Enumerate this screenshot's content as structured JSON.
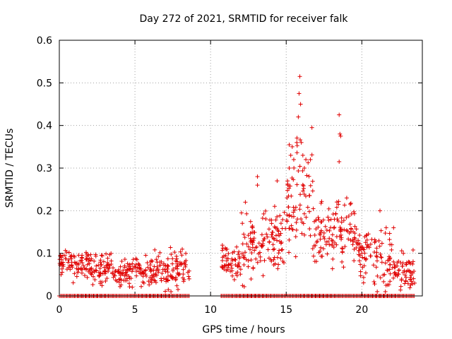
{
  "chart_data": {
    "type": "scatter",
    "title": "Day 272 of 2021, SRMTID for receiver falk",
    "xlabel": "GPS time / hours",
    "ylabel": "SRMTID / TECUs",
    "xlim": [
      0,
      24
    ],
    "ylim": [
      0,
      0.6
    ],
    "xticks": [
      "0",
      "5",
      "10",
      "15",
      "20"
    ],
    "yticks": [
      "0",
      "0.1",
      "0.2",
      "0.3",
      "0.4",
      "0.5",
      "0.6"
    ],
    "grid": true,
    "marker": "+",
    "series_color": "#e00000",
    "bands": [
      {
        "x0": 0.0,
        "x1": 0.9,
        "level": 0.08,
        "spread": 0.02
      },
      {
        "x0": 0.9,
        "x1": 2.0,
        "level": 0.075,
        "spread": 0.025
      },
      {
        "x0": 2.0,
        "x1": 3.5,
        "level": 0.065,
        "spread": 0.025
      },
      {
        "x0": 3.5,
        "x1": 5.0,
        "level": 0.055,
        "spread": 0.02
      },
      {
        "x0": 5.0,
        "x1": 6.5,
        "level": 0.06,
        "spread": 0.025
      },
      {
        "x0": 6.5,
        "x1": 8.6,
        "level": 0.06,
        "spread": 0.03
      },
      {
        "x0": 10.7,
        "x1": 12.0,
        "level": 0.08,
        "spread": 0.03
      },
      {
        "x0": 12.0,
        "x1": 13.5,
        "level": 0.12,
        "spread": 0.06
      },
      {
        "x0": 13.5,
        "x1": 15.0,
        "level": 0.14,
        "spread": 0.06
      },
      {
        "x0": 15.0,
        "x1": 16.8,
        "level": 0.22,
        "spread": 0.09
      },
      {
        "x0": 16.8,
        "x1": 18.3,
        "level": 0.15,
        "spread": 0.05
      },
      {
        "x0": 18.3,
        "x1": 19.6,
        "level": 0.16,
        "spread": 0.05
      },
      {
        "x0": 19.6,
        "x1": 20.8,
        "level": 0.11,
        "spread": 0.05
      },
      {
        "x0": 20.8,
        "x1": 22.0,
        "level": 0.08,
        "spread": 0.05
      },
      {
        "x0": 22.0,
        "x1": 23.5,
        "level": 0.06,
        "spread": 0.03
      }
    ],
    "peaks": [
      [
        15.1,
        0.26
      ],
      [
        15.2,
        0.3
      ],
      [
        15.3,
        0.33
      ],
      [
        15.4,
        0.35
      ],
      [
        15.5,
        0.32
      ],
      [
        15.7,
        0.36
      ],
      [
        15.8,
        0.42
      ],
      [
        15.85,
        0.475
      ],
      [
        15.9,
        0.515
      ],
      [
        15.95,
        0.45
      ],
      [
        16.0,
        0.36
      ],
      [
        16.1,
        0.33
      ],
      [
        16.2,
        0.3
      ],
      [
        16.3,
        0.32
      ],
      [
        16.6,
        0.32
      ],
      [
        16.7,
        0.395
      ],
      [
        13.1,
        0.28
      ],
      [
        13.1,
        0.26
      ],
      [
        12.3,
        0.22
      ],
      [
        14.4,
        0.27
      ],
      [
        18.5,
        0.425
      ],
      [
        18.55,
        0.38
      ],
      [
        18.6,
        0.375
      ],
      [
        18.5,
        0.315
      ],
      [
        19.0,
        0.23
      ],
      [
        21.2,
        0.2
      ],
      [
        22.1,
        0.16
      ]
    ],
    "zero_points": [
      [
        0.0,
        0.0
      ],
      [
        0.25,
        0.0
      ],
      [
        0.5,
        0.0
      ],
      [
        0.75,
        0.0
      ],
      [
        1.0,
        0.0
      ],
      [
        1.25,
        0.0
      ],
      [
        1.5,
        0.0
      ],
      [
        1.75,
        0.0
      ],
      [
        2.0,
        0.0
      ],
      [
        2.25,
        0.0
      ],
      [
        2.5,
        0.0
      ],
      [
        2.75,
        0.0
      ],
      [
        3.0,
        0.0
      ],
      [
        3.25,
        0.0
      ],
      [
        3.5,
        0.0
      ],
      [
        3.75,
        0.0
      ],
      [
        4.0,
        0.0
      ],
      [
        4.25,
        0.0
      ],
      [
        4.5,
        0.0
      ],
      [
        4.75,
        0.0
      ],
      [
        5.0,
        0.0
      ],
      [
        5.25,
        0.0
      ],
      [
        5.5,
        0.0
      ],
      [
        5.75,
        0.0
      ],
      [
        6.0,
        0.0
      ],
      [
        6.25,
        0.0
      ],
      [
        6.5,
        0.0
      ],
      [
        6.75,
        0.0
      ],
      [
        7.0,
        0.0
      ],
      [
        7.25,
        0.0
      ],
      [
        7.5,
        0.0
      ],
      [
        7.75,
        0.0
      ],
      [
        8.0,
        0.0
      ],
      [
        8.25,
        0.0
      ],
      [
        8.5,
        0.0
      ],
      [
        10.7,
        0.0
      ],
      [
        10.95,
        0.0
      ],
      [
        11.2,
        0.0
      ],
      [
        11.45,
        0.0
      ],
      [
        11.7,
        0.0
      ],
      [
        11.95,
        0.0
      ],
      [
        12.2,
        0.0
      ],
      [
        12.45,
        0.0
      ],
      [
        12.7,
        0.0
      ],
      [
        12.95,
        0.0
      ],
      [
        13.2,
        0.0
      ],
      [
        13.45,
        0.0
      ],
      [
        13.7,
        0.0
      ],
      [
        13.95,
        0.0
      ],
      [
        14.2,
        0.0
      ],
      [
        14.45,
        0.0
      ],
      [
        14.7,
        0.0
      ],
      [
        14.95,
        0.0
      ],
      [
        15.2,
        0.0
      ],
      [
        15.45,
        0.0
      ],
      [
        15.7,
        0.0
      ],
      [
        15.95,
        0.0
      ],
      [
        16.2,
        0.0
      ],
      [
        16.45,
        0.0
      ],
      [
        16.7,
        0.0
      ],
      [
        16.95,
        0.0
      ],
      [
        17.2,
        0.0
      ],
      [
        17.45,
        0.0
      ],
      [
        17.7,
        0.0
      ],
      [
        17.95,
        0.0
      ],
      [
        18.2,
        0.0
      ],
      [
        18.45,
        0.0
      ],
      [
        18.7,
        0.0
      ],
      [
        18.95,
        0.0
      ],
      [
        19.2,
        0.0
      ],
      [
        19.45,
        0.0
      ],
      [
        19.7,
        0.0
      ],
      [
        19.95,
        0.0
      ],
      [
        20.2,
        0.0
      ],
      [
        20.45,
        0.0
      ],
      [
        20.7,
        0.0
      ],
      [
        20.95,
        0.0
      ],
      [
        21.2,
        0.0
      ],
      [
        21.45,
        0.0
      ],
      [
        21.7,
        0.0
      ],
      [
        21.95,
        0.0
      ],
      [
        22.2,
        0.0
      ],
      [
        22.45,
        0.0
      ],
      [
        22.7,
        0.0
      ],
      [
        22.95,
        0.0
      ],
      [
        23.2,
        0.0
      ],
      [
        23.45,
        0.0
      ]
    ]
  }
}
